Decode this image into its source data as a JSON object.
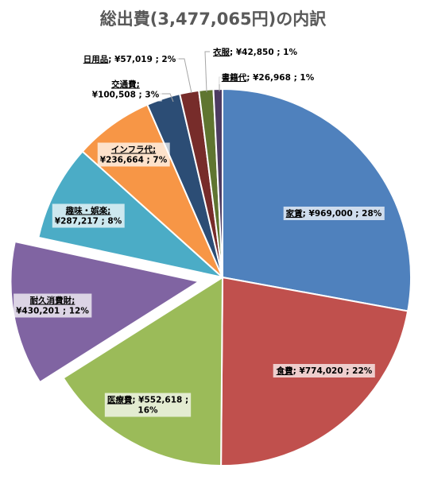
{
  "chart_data": {
    "type": "pie",
    "title": "総出費(3,477,065円)の内訳",
    "slices": [
      {
        "name": "家賃",
        "value": 969000,
        "value_label": "¥969,000",
        "percent_label": "28%",
        "color": "#4f81bd"
      },
      {
        "name": "食費",
        "value": 774020,
        "value_label": "¥774,020",
        "percent_label": "22%",
        "color": "#c0504d"
      },
      {
        "name": "医療費",
        "value": 552618,
        "value_label": "¥552,618",
        "percent_label": "16%",
        "color": "#9bbb59"
      },
      {
        "name": "耐久消費財",
        "value": 430201,
        "value_label": "¥430,201",
        "percent_label": "12%",
        "color": "#8064a2",
        "exploded": true
      },
      {
        "name": "趣味・娯楽",
        "value": 287217,
        "value_label": "¥287,217",
        "percent_label": "8%",
        "color": "#4bacc6"
      },
      {
        "name": "インフラ代",
        "value": 236664,
        "value_label": "¥236,664",
        "percent_label": "7%",
        "color": "#f79646"
      },
      {
        "name": "交通費",
        "value": 100508,
        "value_label": "¥100,508",
        "percent_label": "3%",
        "color": "#2c4d75"
      },
      {
        "name": "日用品",
        "value": 57019,
        "value_label": "¥57,019",
        "percent_label": "2%",
        "color": "#772c2a"
      },
      {
        "name": "衣服",
        "value": 42850,
        "value_label": "¥42,850",
        "percent_label": "1%",
        "color": "#5f7530"
      },
      {
        "name": "書籍代",
        "value": 26968,
        "value_label": "¥26,968",
        "percent_label": "1%",
        "color": "#4d3b62"
      }
    ],
    "label_separator": ";",
    "legend": "none",
    "start_angle": "top, clockwise"
  }
}
